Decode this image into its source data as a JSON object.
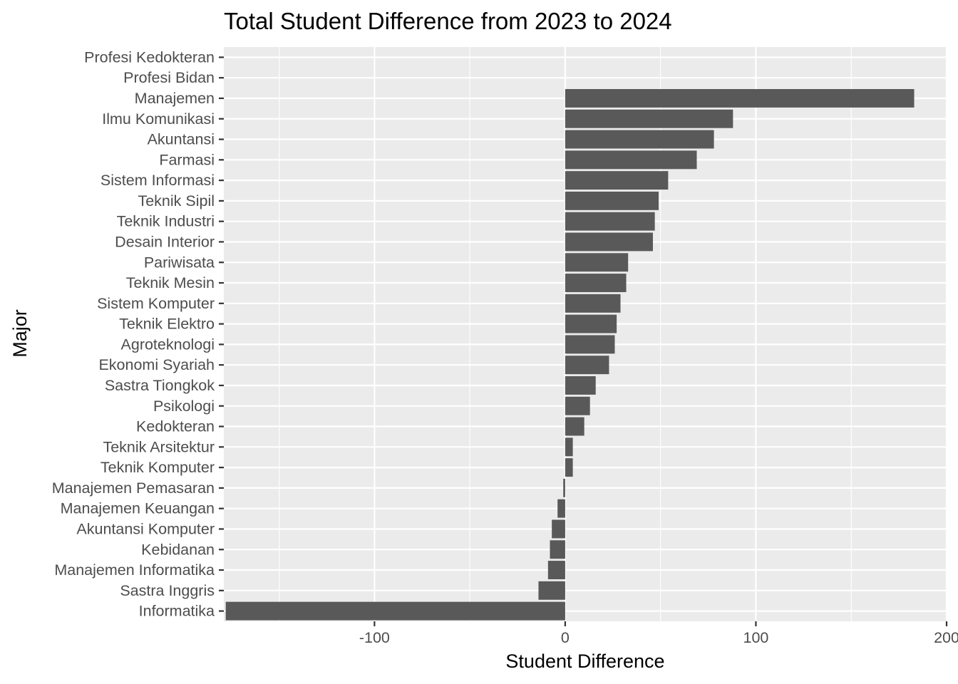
{
  "chart_data": {
    "type": "bar",
    "orientation": "horizontal",
    "title": "Total Student Difference from 2023 to 2024",
    "xlabel": "Student Difference",
    "ylabel": "Major",
    "xlim": [
      -179,
      200
    ],
    "xticks": [
      -100,
      0,
      100,
      200
    ],
    "xtick_labels": [
      "-100",
      "0",
      "100",
      "200"
    ],
    "grid": true,
    "legend": "none",
    "colors": {
      "bar": "#595959",
      "panel": "#ebebeb",
      "grid": "#ffffff",
      "tick_text": "#4d4d4d",
      "tick_mark": "#333333"
    },
    "categories": [
      "Profesi Kedokteran",
      "Profesi Bidan",
      "Manajemen",
      "Ilmu Komunikasi",
      "Akuntansi",
      "Farmasi",
      "Sistem Informasi",
      "Teknik Sipil",
      "Teknik Industri",
      "Desain Interior",
      "Pariwisata",
      "Teknik Mesin",
      "Sistem Komputer",
      "Teknik Elektro",
      "Agroteknologi",
      "Ekonomi Syariah",
      "Sastra Tiongkok",
      "Psikologi",
      "Kedokteran",
      "Teknik Arsitektur",
      "Teknik Komputer",
      "Manajemen Pemasaran",
      "Manajemen Keuangan",
      "Akuntansi Komputer",
      "Kebidanan",
      "Manajemen Informatika",
      "Sastra Inggris",
      "Informatika"
    ],
    "values": [
      0,
      0,
      183,
      88,
      78,
      69,
      54,
      49,
      47,
      46,
      33,
      32,
      29,
      27,
      26,
      23,
      16,
      13,
      10,
      4,
      4,
      -1,
      -4,
      -7,
      -8,
      -9,
      -14,
      -178
    ]
  }
}
